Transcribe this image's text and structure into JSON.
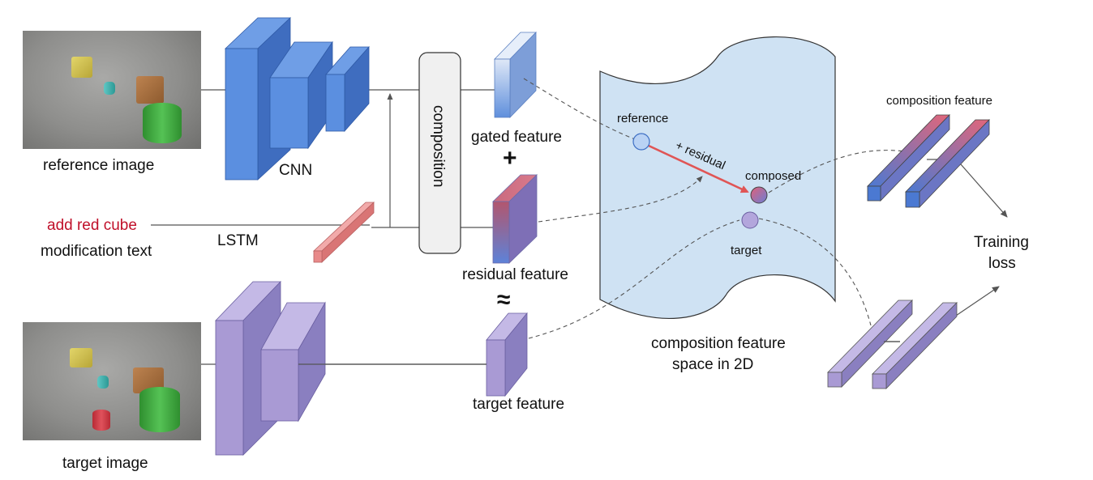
{
  "labels": {
    "reference_image": "reference image",
    "cnn": "CNN",
    "modification_query": "add red cube",
    "modification_text": "modification text",
    "lstm": "LSTM",
    "composition_block": "composition",
    "gated_feature": "gated feature",
    "plus": "+",
    "residual_feature": "residual feature",
    "approx": "≈",
    "target_feature": "target feature",
    "target_image": "target image",
    "space_title_line1": "composition feature",
    "space_title_line2": "space in 2D",
    "point_reference": "reference",
    "point_composed": "composed",
    "point_target": "target",
    "residual_arrow": "+ residual",
    "composition_feature": "composition feature",
    "training_loss_line1": "Training",
    "training_loss_line2": "loss"
  },
  "colors": {
    "cnn_blue": "#5b8fe0",
    "target_purple": "#a99ad4",
    "lstm_pink": "#e88a8a",
    "query_red": "#c0102a",
    "space_fill": "#cfe2f3",
    "residual_arrow": "#e05555"
  }
}
